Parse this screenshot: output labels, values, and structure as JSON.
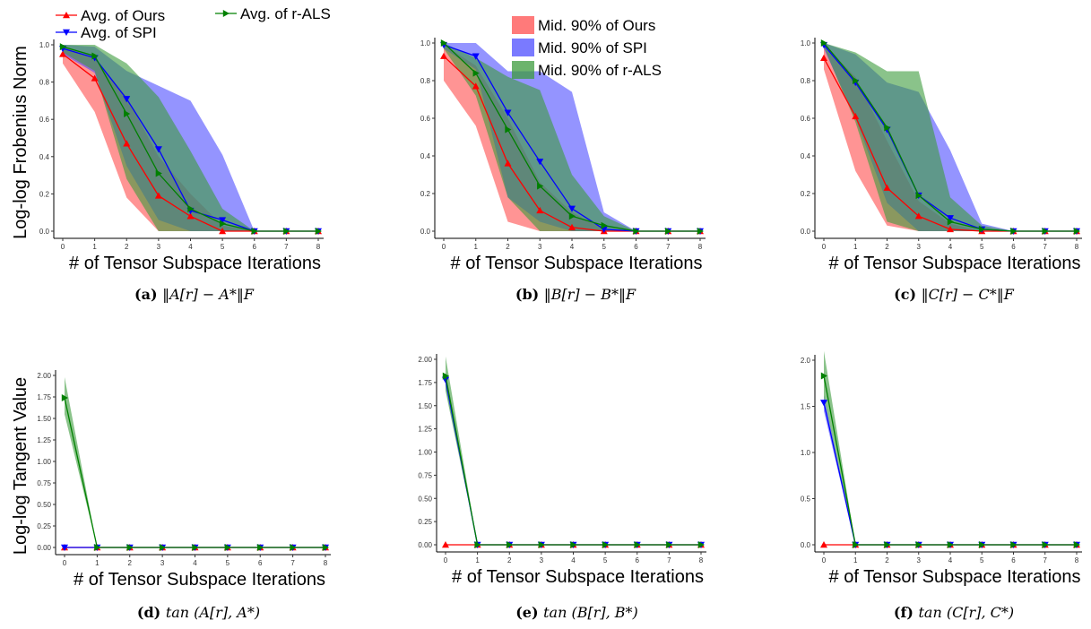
{
  "colors": {
    "ours": "#ff0000",
    "spi": "#0000ff",
    "rals": "#008000",
    "ours_band": "#ff4d4d",
    "spi_band": "#4d4dff",
    "rals_band": "#3c9b3c"
  },
  "legend": {
    "lines": [
      "Avg. of Ours",
      "Avg. of SPI",
      "Avg. of r-ALS"
    ],
    "bands": [
      "Mid. 90% of Ours",
      "Mid. 90% of SPI",
      "Mid. 90% of r-ALS"
    ]
  },
  "chart_data": [
    {
      "type": "line",
      "caption_label": "(a)",
      "caption_expr": "‖A[r] − A*‖F",
      "xlabel": "# of Tensor Subspace Iterations",
      "ylabel": "Log-log Frobenius Norm",
      "x": [
        0,
        1,
        2,
        3,
        4,
        5,
        6,
        7,
        8
      ],
      "ylim": [
        0,
        1.0
      ],
      "yticks": [
        "0.0",
        "0.2",
        "0.4",
        "0.6",
        "0.8",
        "1.0"
      ],
      "series": [
        {
          "name": "Avg. of Ours",
          "values": [
            0.95,
            0.82,
            0.47,
            0.19,
            0.08,
            0.0,
            0.0,
            0.0,
            0.0
          ],
          "lower": [
            0.9,
            0.64,
            0.18,
            0.0,
            0.0,
            0.0,
            0.0,
            0.0,
            0.0
          ],
          "upper": [
            0.99,
            0.93,
            0.72,
            0.4,
            0.2,
            0.03,
            0.0,
            0.0,
            0.0
          ]
        },
        {
          "name": "Avg. of SPI",
          "values": [
            0.98,
            0.93,
            0.71,
            0.44,
            0.11,
            0.06,
            0.0,
            0.0,
            0.0
          ],
          "lower": [
            0.95,
            0.85,
            0.35,
            0.06,
            0.0,
            0.0,
            0.0,
            0.0,
            0.0
          ],
          "upper": [
            1.0,
            0.99,
            0.86,
            0.78,
            0.7,
            0.41,
            0.0,
            0.0,
            0.0
          ]
        },
        {
          "name": "Avg. of r-ALS",
          "values": [
            0.99,
            0.94,
            0.63,
            0.31,
            0.12,
            0.04,
            0.0,
            0.0,
            0.0
          ],
          "lower": [
            0.96,
            0.86,
            0.28,
            0.0,
            0.0,
            0.0,
            0.0,
            0.0,
            0.0
          ],
          "upper": [
            1.0,
            1.0,
            0.9,
            0.72,
            0.43,
            0.12,
            0.0,
            0.0,
            0.0
          ]
        }
      ]
    },
    {
      "type": "line",
      "caption_label": "(b)",
      "caption_expr": "‖B[r] − B*‖F",
      "xlabel": "# of Tensor Subspace Iterations",
      "ylabel": "",
      "x": [
        0,
        1,
        2,
        3,
        4,
        5,
        6,
        7,
        8
      ],
      "ylim": [
        0,
        1.0
      ],
      "yticks": [
        "0.0",
        "0.2",
        "0.4",
        "0.6",
        "0.8",
        "1.0"
      ],
      "series": [
        {
          "name": "Avg. of Ours",
          "values": [
            0.93,
            0.77,
            0.36,
            0.11,
            0.02,
            0.0,
            0.0,
            0.0,
            0.0
          ],
          "lower": [
            0.8,
            0.56,
            0.05,
            0.0,
            0.0,
            0.0,
            0.0,
            0.0,
            0.0
          ],
          "upper": [
            0.99,
            0.88,
            0.6,
            0.26,
            0.1,
            0.01,
            0.0,
            0.0,
            0.0
          ]
        },
        {
          "name": "Avg. of SPI",
          "values": [
            0.99,
            0.93,
            0.63,
            0.37,
            0.12,
            0.01,
            0.0,
            0.0,
            0.0
          ],
          "lower": [
            0.97,
            0.86,
            0.18,
            0.05,
            0.0,
            0.0,
            0.0,
            0.0,
            0.0
          ],
          "upper": [
            1.0,
            1.0,
            0.85,
            0.85,
            0.74,
            0.1,
            0.0,
            0.0,
            0.0
          ]
        },
        {
          "name": "Avg. of r-ALS",
          "values": [
            1.0,
            0.84,
            0.54,
            0.24,
            0.08,
            0.03,
            0.0,
            0.0,
            0.0
          ],
          "lower": [
            0.97,
            0.72,
            0.18,
            0.0,
            0.0,
            0.0,
            0.0,
            0.0,
            0.0
          ],
          "upper": [
            1.0,
            0.92,
            0.82,
            0.75,
            0.3,
            0.08,
            0.0,
            0.0,
            0.0
          ]
        }
      ]
    },
    {
      "type": "line",
      "caption_label": "(c)",
      "caption_expr": "‖C[r] − C*‖F",
      "xlabel": "# of Tensor Subspace Iterations",
      "ylabel": "",
      "x": [
        0,
        1,
        2,
        3,
        4,
        5,
        6,
        7,
        8
      ],
      "ylim": [
        0,
        1.0
      ],
      "yticks": [
        "0.0",
        "0.2",
        "0.4",
        "0.6",
        "0.8",
        "1.0"
      ],
      "series": [
        {
          "name": "Avg. of Ours",
          "values": [
            0.92,
            0.61,
            0.23,
            0.08,
            0.01,
            0.0,
            0.0,
            0.0,
            0.0
          ],
          "lower": [
            0.86,
            0.32,
            0.03,
            0.0,
            0.0,
            0.0,
            0.0,
            0.0,
            0.0
          ],
          "upper": [
            0.99,
            0.82,
            0.48,
            0.16,
            0.04,
            0.0,
            0.0,
            0.0,
            0.0
          ]
        },
        {
          "name": "Avg. of SPI",
          "values": [
            0.99,
            0.79,
            0.54,
            0.19,
            0.07,
            0.01,
            0.0,
            0.0,
            0.0
          ],
          "lower": [
            0.97,
            0.6,
            0.15,
            0.0,
            0.0,
            0.0,
            0.0,
            0.0,
            0.0
          ],
          "upper": [
            1.0,
            0.94,
            0.79,
            0.74,
            0.43,
            0.04,
            0.0,
            0.0,
            0.0
          ]
        },
        {
          "name": "Avg. of r-ALS",
          "values": [
            1.0,
            0.8,
            0.55,
            0.19,
            0.05,
            0.01,
            0.0,
            0.0,
            0.0
          ],
          "lower": [
            0.98,
            0.58,
            0.05,
            0.0,
            0.0,
            0.0,
            0.0,
            0.0,
            0.0
          ],
          "upper": [
            1.0,
            0.95,
            0.85,
            0.85,
            0.18,
            0.03,
            0.0,
            0.0,
            0.0
          ]
        }
      ]
    },
    {
      "type": "line",
      "caption_label": "(d)",
      "caption_expr": "tan (A[r], A*)",
      "xlabel": "# of Tensor Subspace Iterations",
      "ylabel": "Log-log Tangent Value",
      "x": [
        0,
        1,
        2,
        3,
        4,
        5,
        6,
        7,
        8
      ],
      "ylim": [
        0,
        2.0
      ],
      "yticks": [
        "0.00",
        "0.25",
        "0.50",
        "0.75",
        "1.00",
        "1.25",
        "1.50",
        "1.75",
        "2.00"
      ],
      "series": [
        {
          "name": "Avg. of Ours",
          "values": [
            0.0,
            0.0,
            0.0,
            0.0,
            0.0,
            0.0,
            0.0,
            0.0,
            0.0
          ],
          "lower": [
            0.0,
            0.0,
            0.0,
            0.0,
            0.0,
            0.0,
            0.0,
            0.0,
            0.0
          ],
          "upper": [
            0.0,
            0.0,
            0.0,
            0.0,
            0.0,
            0.0,
            0.0,
            0.0,
            0.0
          ]
        },
        {
          "name": "Avg. of SPI",
          "values": [
            0.0,
            0.0,
            0.0,
            0.0,
            0.0,
            0.0,
            0.0,
            0.0,
            0.0
          ],
          "lower": [
            0.0,
            0.0,
            0.0,
            0.0,
            0.0,
            0.0,
            0.0,
            0.0,
            0.0
          ],
          "upper": [
            0.0,
            0.0,
            0.0,
            0.0,
            0.0,
            0.0,
            0.0,
            0.0,
            0.0
          ]
        },
        {
          "name": "Avg. of r-ALS",
          "values": [
            1.74,
            0.0,
            0.0,
            0.0,
            0.0,
            0.0,
            0.0,
            0.0,
            0.0
          ],
          "lower": [
            1.55,
            0.0,
            0.0,
            0.0,
            0.0,
            0.0,
            0.0,
            0.0,
            0.0
          ],
          "upper": [
            1.98,
            0.0,
            0.0,
            0.0,
            0.0,
            0.0,
            0.0,
            0.0,
            0.0
          ]
        }
      ]
    },
    {
      "type": "line",
      "caption_label": "(e)",
      "caption_expr": "tan (B[r], B*)",
      "xlabel": "# of Tensor Subspace Iterations",
      "ylabel": "",
      "x": [
        0,
        1,
        2,
        3,
        4,
        5,
        6,
        7,
        8
      ],
      "ylim": [
        0,
        2.0
      ],
      "yticks": [
        "0.00",
        "0.25",
        "0.50",
        "0.75",
        "1.00",
        "1.25",
        "1.50",
        "1.75",
        "2.00"
      ],
      "series": [
        {
          "name": "Avg. of Ours",
          "values": [
            0.0,
            0.0,
            0.0,
            0.0,
            0.0,
            0.0,
            0.0,
            0.0,
            0.0
          ],
          "lower": [
            0.0,
            0.0,
            0.0,
            0.0,
            0.0,
            0.0,
            0.0,
            0.0,
            0.0
          ],
          "upper": [
            0.0,
            0.0,
            0.0,
            0.0,
            0.0,
            0.0,
            0.0,
            0.0,
            0.0
          ]
        },
        {
          "name": "Avg. of SPI",
          "values": [
            1.78,
            0.0,
            0.0,
            0.0,
            0.0,
            0.0,
            0.0,
            0.0,
            0.0
          ],
          "lower": [
            1.7,
            0.0,
            0.0,
            0.0,
            0.0,
            0.0,
            0.0,
            0.0,
            0.0
          ],
          "upper": [
            1.86,
            0.0,
            0.0,
            0.0,
            0.0,
            0.0,
            0.0,
            0.0,
            0.0
          ]
        },
        {
          "name": "Avg. of r-ALS",
          "values": [
            1.82,
            0.0,
            0.0,
            0.0,
            0.0,
            0.0,
            0.0,
            0.0,
            0.0
          ],
          "lower": [
            1.66,
            0.0,
            0.0,
            0.0,
            0.0,
            0.0,
            0.0,
            0.0,
            0.0
          ],
          "upper": [
            2.03,
            0.0,
            0.0,
            0.0,
            0.0,
            0.0,
            0.0,
            0.0,
            0.0
          ]
        }
      ]
    },
    {
      "type": "line",
      "caption_label": "(f)",
      "caption_expr": "tan (C[r], C*)",
      "xlabel": "# of Tensor Subspace Iterations",
      "ylabel": "",
      "x": [
        0,
        1,
        2,
        3,
        4,
        5,
        6,
        7,
        8
      ],
      "ylim": [
        0,
        2.0
      ],
      "yticks": [
        "0.0",
        "0.5",
        "1.0",
        "1.5",
        "2.0"
      ],
      "series": [
        {
          "name": "Avg. of Ours",
          "values": [
            0.0,
            0.0,
            0.0,
            0.0,
            0.0,
            0.0,
            0.0,
            0.0,
            0.0
          ],
          "lower": [
            0.0,
            0.0,
            0.0,
            0.0,
            0.0,
            0.0,
            0.0,
            0.0,
            0.0
          ],
          "upper": [
            0.0,
            0.0,
            0.0,
            0.0,
            0.0,
            0.0,
            0.0,
            0.0,
            0.0
          ]
        },
        {
          "name": "Avg. of SPI",
          "values": [
            1.54,
            0.0,
            0.0,
            0.0,
            0.0,
            0.0,
            0.0,
            0.0,
            0.0
          ],
          "lower": [
            1.45,
            0.0,
            0.0,
            0.0,
            0.0,
            0.0,
            0.0,
            0.0,
            0.0
          ],
          "upper": [
            1.62,
            0.0,
            0.0,
            0.0,
            0.0,
            0.0,
            0.0,
            0.0,
            0.0
          ]
        },
        {
          "name": "Avg. of r-ALS",
          "values": [
            1.83,
            0.0,
            0.0,
            0.0,
            0.0,
            0.0,
            0.0,
            0.0,
            0.0
          ],
          "lower": [
            1.6,
            0.0,
            0.0,
            0.0,
            0.0,
            0.0,
            0.0,
            0.0,
            0.0
          ],
          "upper": [
            2.1,
            0.0,
            0.0,
            0.0,
            0.0,
            0.0,
            0.0,
            0.0,
            0.0
          ]
        }
      ]
    }
  ]
}
